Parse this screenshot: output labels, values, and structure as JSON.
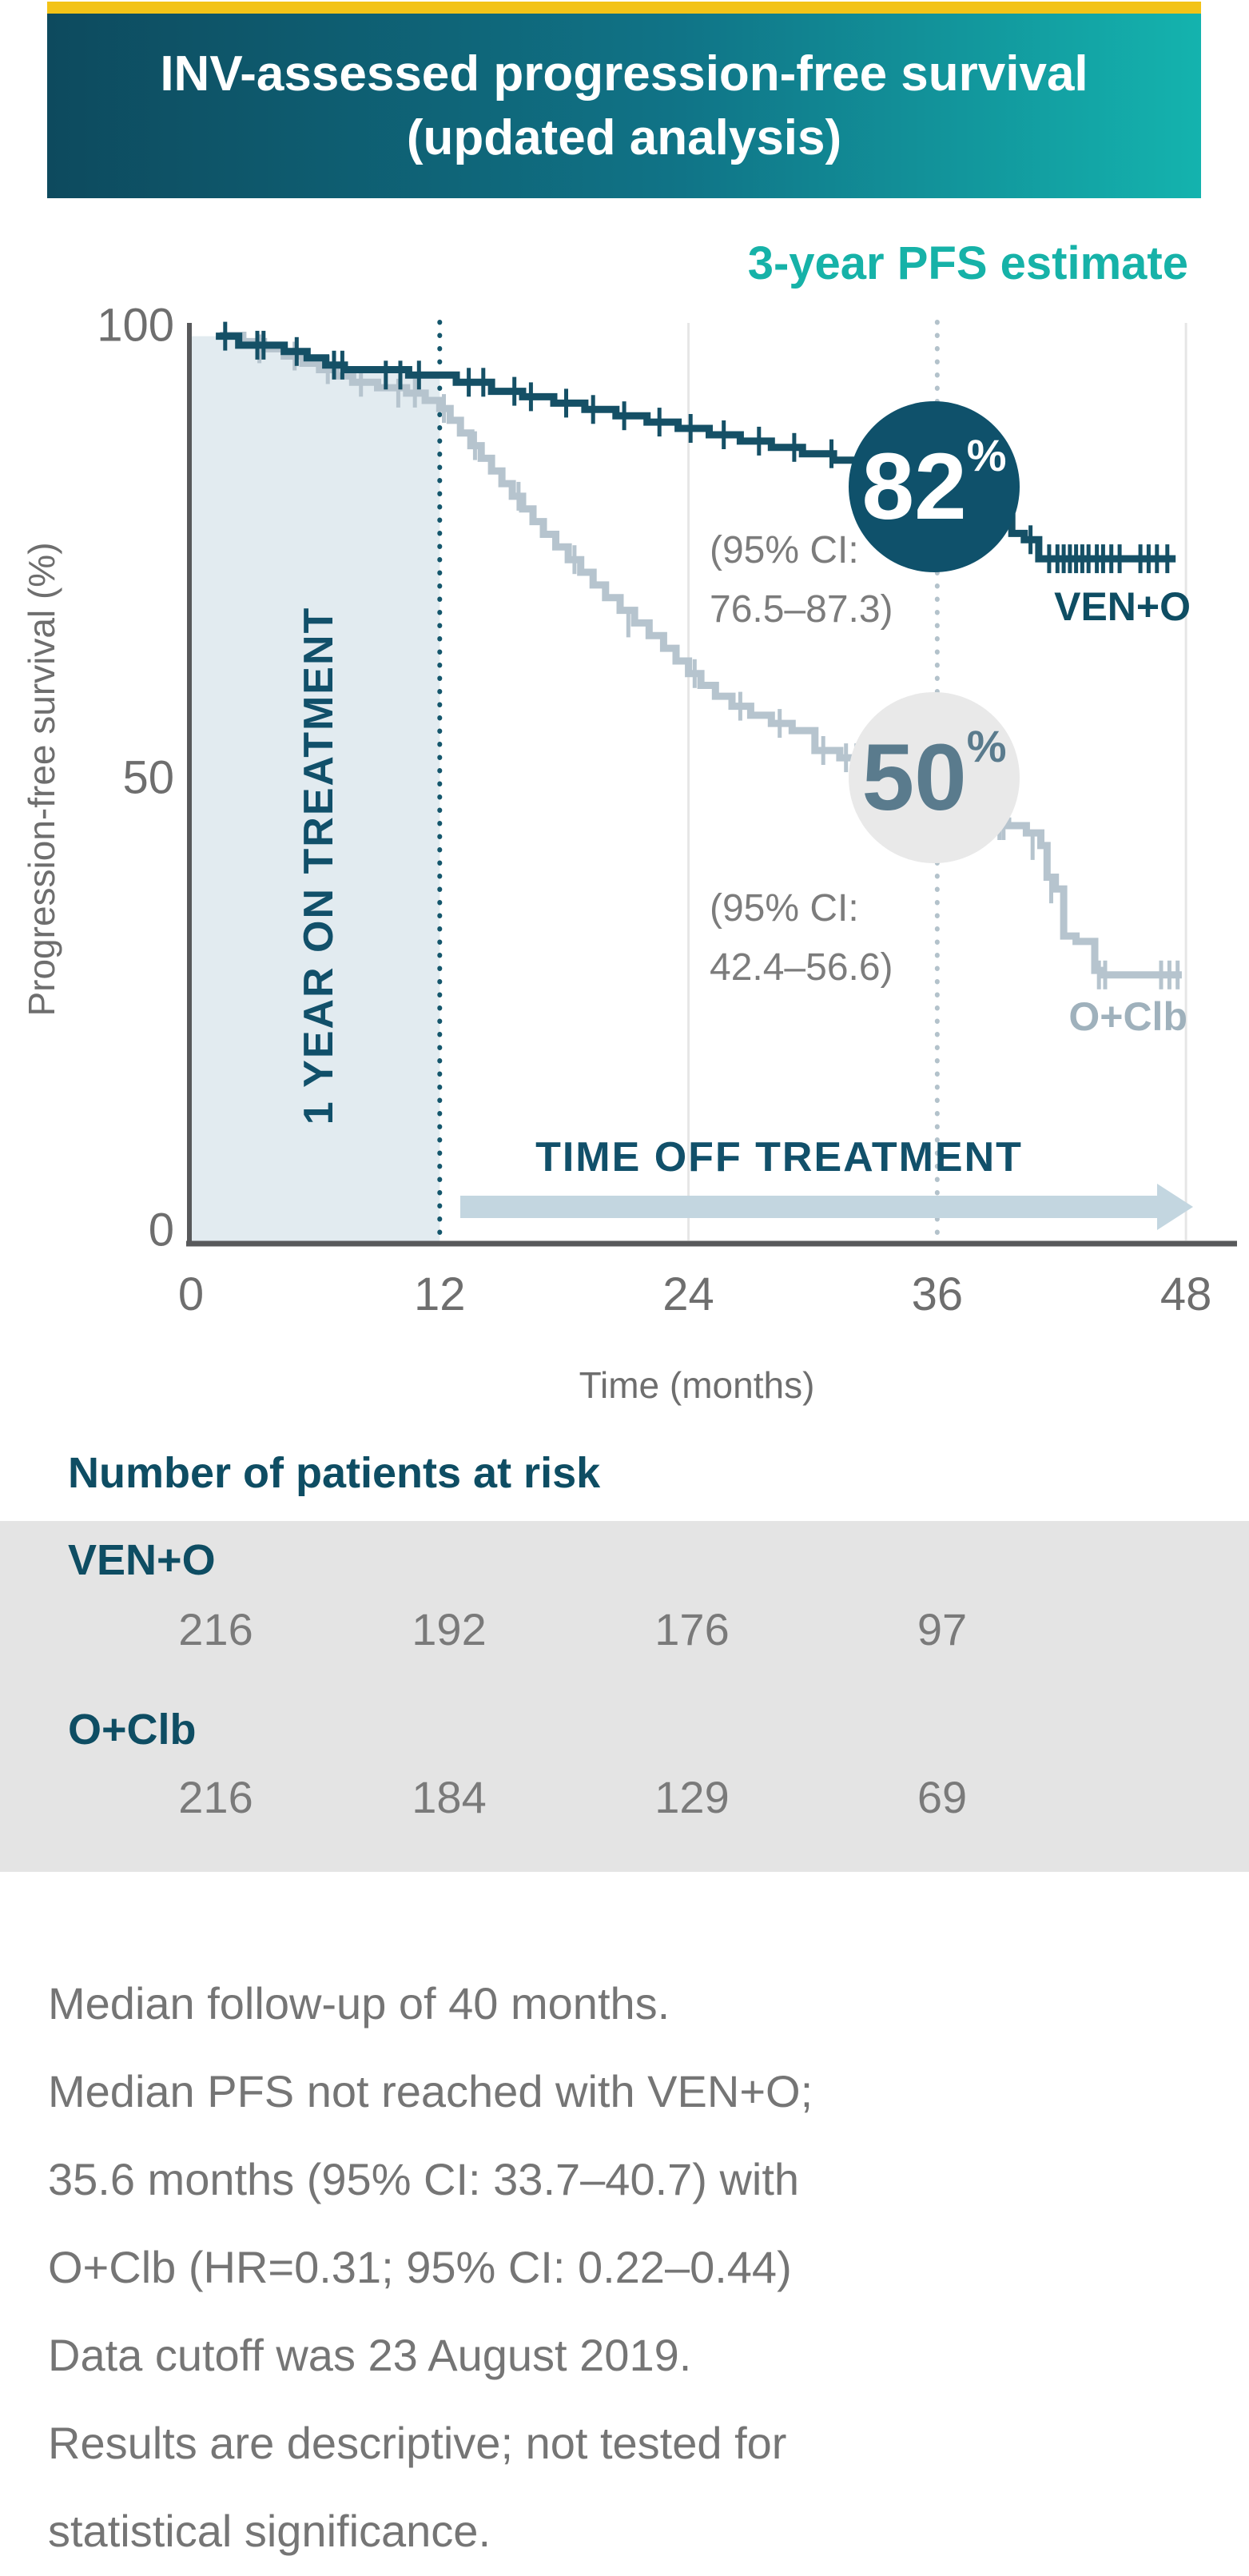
{
  "header": {
    "accent_color": "#F3C317",
    "title_line1": "INV-assessed progression-free survival",
    "title_line2": "(updated analysis)"
  },
  "chart": {
    "estimate_heading": "3-year PFS estimate",
    "y_axis_title": "Progression-free survival (%)",
    "x_axis_title": "Time (months)",
    "y_ticks": [
      "100",
      "50",
      "0"
    ],
    "x_ticks": [
      "0",
      "12",
      "24",
      "36",
      "48"
    ],
    "on_treatment_label": "1 YEAR ON TREATMENT",
    "off_treatment_label": "TIME OFF TREATMENT",
    "ven_o": {
      "name": "VEN+O",
      "estimate_value": "82",
      "estimate_unit": "%",
      "ci_line1": "(95% CI:",
      "ci_line2": "76.5–87.3)",
      "color": "#155066"
    },
    "o_clb": {
      "name": "O+Clb",
      "estimate_value": "50",
      "estimate_unit": "%",
      "ci_line1": "(95% CI:",
      "ci_line2": "42.4–56.6)",
      "color": "#B6C4CE"
    }
  },
  "chart_data": {
    "type": "line",
    "km_step": true,
    "title": "INV-assessed progression-free survival (updated analysis)",
    "xlabel": "Time (months)",
    "ylabel": "Progression-free survival (%)",
    "xlim": [
      0,
      48
    ],
    "ylim": [
      0,
      100
    ],
    "xticks": [
      0,
      12,
      24,
      36,
      48
    ],
    "yticks": [
      0,
      50,
      100
    ],
    "grid_vertical_months": [
      24,
      48
    ],
    "dotted_marker_months": [
      12,
      36
    ],
    "annotations": {
      "three_year_pfs": {
        "VEN+O": {
          "estimate_pct": 82,
          "ci95": [
            76.5,
            87.3
          ]
        },
        "O+Clb": {
          "estimate_pct": 50,
          "ci95": [
            42.4,
            56.6
          ]
        }
      },
      "on_treatment_region_months": [
        0,
        12
      ],
      "time_off_treatment_arrow_months": [
        13,
        48
      ]
    },
    "series": [
      {
        "name": "VEN+O",
        "color": "#155066",
        "steps": [
          [
            1.2,
            98.8
          ],
          [
            2.3,
            97.8
          ],
          [
            4.5,
            97.1
          ],
          [
            5.6,
            96.4
          ],
          [
            6.5,
            95.6
          ],
          [
            7.4,
            95.1
          ],
          [
            10.5,
            94.5
          ],
          [
            12.8,
            93.7
          ],
          [
            14.5,
            92.7
          ],
          [
            16.0,
            92.1
          ],
          [
            17.5,
            91.4
          ],
          [
            19.0,
            90.7
          ],
          [
            20.5,
            90.0
          ],
          [
            22.0,
            89.3
          ],
          [
            23.5,
            88.6
          ],
          [
            25.0,
            87.9
          ],
          [
            26.5,
            87.2
          ],
          [
            28.0,
            86.5
          ],
          [
            29.5,
            85.8
          ],
          [
            31.0,
            85.1
          ],
          [
            32.5,
            84.4
          ],
          [
            34.0,
            83.6
          ],
          [
            35.3,
            82.9
          ],
          [
            36.5,
            82.0
          ],
          [
            37.4,
            80.5
          ],
          [
            38.3,
            78.8
          ],
          [
            39.6,
            77.0
          ],
          [
            40.2,
            76.3
          ],
          [
            40.9,
            74.2
          ]
        ],
        "end_month": 47.5,
        "censors": [
          [
            1.65,
            98.8
          ],
          [
            3.2,
            97.8
          ],
          [
            3.5,
            97.8
          ],
          [
            5.1,
            97.1
          ],
          [
            6.9,
            95.6
          ],
          [
            7.3,
            95.6
          ],
          [
            9.4,
            94.5
          ],
          [
            10.1,
            94.5
          ],
          [
            11.0,
            94.5
          ],
          [
            13.4,
            93.7
          ],
          [
            14.1,
            93.7
          ],
          [
            15.6,
            92.7
          ],
          [
            16.4,
            92.1
          ],
          [
            18.1,
            91.4
          ],
          [
            19.4,
            90.7
          ],
          [
            20.9,
            90.0
          ],
          [
            22.6,
            89.3
          ],
          [
            24.1,
            88.6
          ],
          [
            25.7,
            87.9
          ],
          [
            27.4,
            87.2
          ],
          [
            29.1,
            86.5
          ],
          [
            30.9,
            85.8
          ],
          [
            32.4,
            84.4
          ],
          [
            33.6,
            84.4
          ],
          [
            34.7,
            83.6
          ],
          [
            37.9,
            80.5
          ],
          [
            39.1,
            78.8
          ],
          [
            40.5,
            76.3
          ],
          [
            41.4,
            74.2
          ],
          [
            41.8,
            74.2
          ],
          [
            42.1,
            74.2
          ],
          [
            42.4,
            74.2
          ],
          [
            42.7,
            74.2
          ],
          [
            43.0,
            74.2
          ],
          [
            43.3,
            74.2
          ],
          [
            43.7,
            74.2
          ],
          [
            44.0,
            74.2
          ],
          [
            44.4,
            74.2
          ],
          [
            44.8,
            74.2
          ],
          [
            45.8,
            74.2
          ],
          [
            46.2,
            74.2
          ],
          [
            46.6,
            74.2
          ],
          [
            47.1,
            74.2
          ]
        ]
      },
      {
        "name": "O+Clb",
        "color": "#B6C4CE",
        "steps": [
          [
            1.4,
            98.9
          ],
          [
            2.5,
            98.2
          ],
          [
            3.5,
            97.4
          ],
          [
            4.5,
            96.6
          ],
          [
            5.4,
            95.8
          ],
          [
            6.2,
            95.1
          ],
          [
            7.0,
            94.4
          ],
          [
            7.8,
            93.7
          ],
          [
            9.0,
            93.1
          ],
          [
            10.4,
            92.5
          ],
          [
            11.3,
            91.7
          ],
          [
            12.0,
            90.8
          ],
          [
            12.5,
            89.5
          ],
          [
            13.0,
            88.1
          ],
          [
            13.5,
            86.7
          ],
          [
            14.0,
            85.3
          ],
          [
            14.5,
            83.9
          ],
          [
            15.0,
            82.5
          ],
          [
            15.5,
            81.1
          ],
          [
            16.0,
            79.7
          ],
          [
            16.5,
            78.3
          ],
          [
            17.0,
            76.9
          ],
          [
            17.6,
            75.5
          ],
          [
            18.2,
            74.1
          ],
          [
            18.8,
            72.7
          ],
          [
            19.4,
            71.3
          ],
          [
            20.0,
            69.9
          ],
          [
            20.7,
            68.5
          ],
          [
            21.4,
            67.1
          ],
          [
            22.1,
            65.7
          ],
          [
            22.8,
            64.3
          ],
          [
            23.4,
            62.9
          ],
          [
            24.0,
            61.5
          ],
          [
            24.6,
            60.2
          ],
          [
            25.3,
            59.0
          ],
          [
            26.1,
            57.9
          ],
          [
            27.0,
            56.9
          ],
          [
            28.0,
            56.0
          ],
          [
            29.0,
            55.2
          ],
          [
            30.1,
            53.0
          ],
          [
            31.3,
            52.2
          ],
          [
            32.6,
            51.6
          ],
          [
            34.0,
            51.2
          ],
          [
            35.0,
            50.6
          ],
          [
            35.8,
            50.0
          ],
          [
            36.6,
            48.3
          ],
          [
            37.4,
            46.6
          ],
          [
            38.3,
            45.2
          ],
          [
            39.4,
            44.7
          ],
          [
            40.3,
            43.9
          ],
          [
            41.0,
            42.5
          ],
          [
            41.3,
            39.0
          ],
          [
            41.7,
            37.7
          ],
          [
            42.1,
            32.5
          ],
          [
            42.7,
            31.9
          ],
          [
            43.6,
            28.7
          ],
          [
            43.9,
            28.2
          ]
        ],
        "end_month": 47.8,
        "censors": [
          [
            3.3,
            97.4
          ],
          [
            5.0,
            96.6
          ],
          [
            6.6,
            95.1
          ],
          [
            8.2,
            93.7
          ],
          [
            10.0,
            92.5
          ],
          [
            10.8,
            92.5
          ],
          [
            12.2,
            90.8
          ],
          [
            13.7,
            86.7
          ],
          [
            15.8,
            81.1
          ],
          [
            18.5,
            74.1
          ],
          [
            21.1,
            67.1
          ],
          [
            24.3,
            61.5
          ],
          [
            26.5,
            57.9
          ],
          [
            28.4,
            56.0
          ],
          [
            30.5,
            53.0
          ],
          [
            31.6,
            52.2
          ],
          [
            32.1,
            52.2
          ],
          [
            32.9,
            51.6
          ],
          [
            33.5,
            51.6
          ],
          [
            34.4,
            51.2
          ],
          [
            39.0,
            44.7
          ],
          [
            39.2,
            44.7
          ],
          [
            40.6,
            42.5
          ],
          [
            41.5,
            37.7
          ],
          [
            43.8,
            28.2
          ],
          [
            44.1,
            28.2
          ],
          [
            46.8,
            28.2
          ],
          [
            47.2,
            28.2
          ],
          [
            47.6,
            28.2
          ]
        ]
      }
    ],
    "at_risk": {
      "times": [
        0,
        12,
        24,
        36
      ],
      "VEN+O": [
        216,
        192,
        176,
        97
      ],
      "O+Clb": [
        216,
        184,
        129,
        69
      ]
    }
  },
  "at_risk": {
    "heading": "Number of patients at risk",
    "rows": [
      {
        "group": "VEN+O",
        "counts": [
          "216",
          "192",
          "176",
          "97"
        ]
      },
      {
        "group": "O+Clb",
        "counts": [
          "216",
          "184",
          "129",
          "69"
        ]
      }
    ]
  },
  "footnotes": [
    "Median follow-up of 40 months.",
    "Median PFS not reached with VEN+O;",
    "35.6 months (95% CI: 33.7–40.7) with",
    "O+Clb (HR=0.31; 95% CI: 0.22–0.44)",
    "Data cutoff was 23 August 2019.",
    "Results are descriptive; not tested for",
    "statistical significance."
  ]
}
